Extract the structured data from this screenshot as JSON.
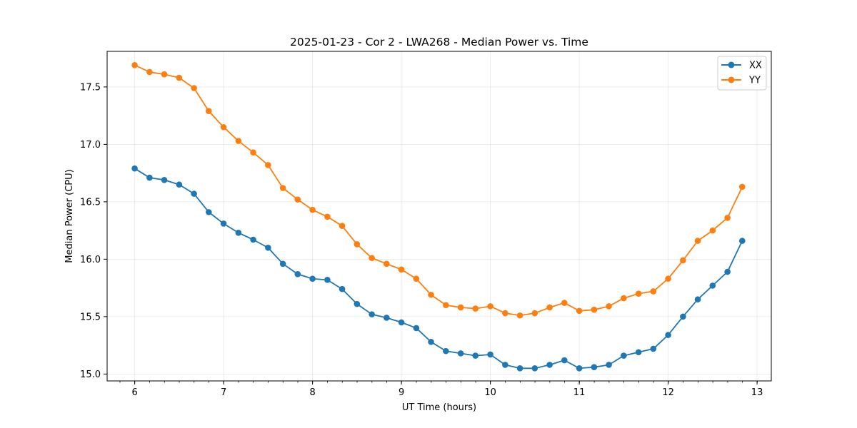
{
  "chart_data": {
    "type": "line",
    "title": "2025-01-23 - Cor 2 - LWA268 - Median Power vs. Time",
    "xlabel": "UT Time (hours)",
    "ylabel": "Median Power (CPU)",
    "xlim": [
      5.69,
      13.16
    ],
    "ylim": [
      14.94,
      17.81
    ],
    "x_ticks": [
      6,
      7,
      8,
      9,
      10,
      11,
      12,
      13
    ],
    "x_minor_step": 0.1667,
    "y_ticks": [
      15.0,
      15.5,
      16.0,
      16.5,
      17.0,
      17.5
    ],
    "y_tick_labels": [
      "15.0",
      "15.5",
      "16.0",
      "16.5",
      "17.0",
      "17.5"
    ],
    "grid": true,
    "legend_position": "top-right",
    "x": [
      6.0,
      6.167,
      6.333,
      6.5,
      6.667,
      6.833,
      7.0,
      7.167,
      7.333,
      7.5,
      7.667,
      7.833,
      8.0,
      8.167,
      8.333,
      8.5,
      8.667,
      8.833,
      9.0,
      9.167,
      9.333,
      9.5,
      9.667,
      9.833,
      10.0,
      10.167,
      10.333,
      10.5,
      10.667,
      10.833,
      11.0,
      11.167,
      11.333,
      11.5,
      11.667,
      11.833,
      12.0,
      12.167,
      12.333,
      12.5,
      12.667,
      12.833
    ],
    "series": [
      {
        "name": "XX",
        "color": "#1f77b4",
        "values": [
          16.79,
          16.71,
          16.69,
          16.65,
          16.57,
          16.41,
          16.31,
          16.23,
          16.17,
          16.1,
          15.96,
          15.87,
          15.83,
          15.82,
          15.74,
          15.61,
          15.52,
          15.49,
          15.45,
          15.4,
          15.28,
          15.2,
          15.18,
          15.16,
          15.17,
          15.08,
          15.05,
          15.05,
          15.08,
          15.12,
          15.05,
          15.06,
          15.08,
          15.16,
          15.19,
          15.22,
          15.34,
          15.5,
          15.65,
          15.77,
          15.89,
          16.16
        ]
      },
      {
        "name": "YY",
        "color": "#ff7f0e",
        "values": [
          17.69,
          17.63,
          17.61,
          17.58,
          17.49,
          17.29,
          17.15,
          17.03,
          16.93,
          16.82,
          16.62,
          16.52,
          16.43,
          16.37,
          16.29,
          16.13,
          16.01,
          15.96,
          15.91,
          15.83,
          15.69,
          15.6,
          15.58,
          15.57,
          15.59,
          15.53,
          15.51,
          15.53,
          15.58,
          15.62,
          15.55,
          15.56,
          15.59,
          15.66,
          15.7,
          15.72,
          15.83,
          15.99,
          16.16,
          16.25,
          16.36,
          16.63
        ]
      }
    ]
  }
}
